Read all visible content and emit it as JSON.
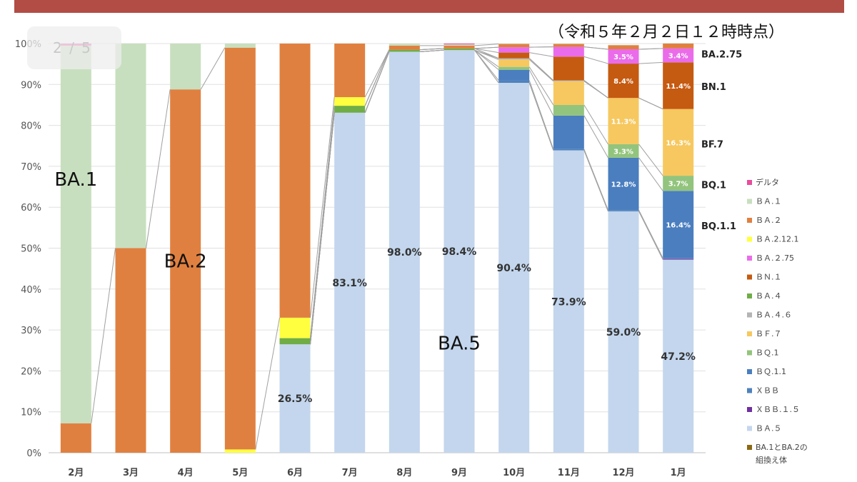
{
  "pagination": {
    "text": "2 / 5"
  },
  "chart_data": {
    "type": "bar",
    "stacked": true,
    "percent": true,
    "title": "",
    "subtitle": "（令和５年２月２日１２時時点）",
    "xlabel": "",
    "ylabel": "",
    "ylim": [
      0,
      100
    ],
    "yticks": [
      "0%",
      "10%",
      "20%",
      "30%",
      "40%",
      "50%",
      "60%",
      "70%",
      "80%",
      "90%",
      "100%"
    ],
    "categories": [
      "2月",
      "3月",
      "4月",
      "5月",
      "6月",
      "7月",
      "8月",
      "9月",
      "10月",
      "11月",
      "12月",
      "1月"
    ],
    "series": [
      {
        "name": "ＢＡ.５",
        "color": "#c3d6ed",
        "values": [
          0,
          0,
          0,
          0,
          26.5,
          83.1,
          98.0,
          98.4,
          90.4,
          73.9,
          59.0,
          47.2
        ]
      },
      {
        "name": "ＸＢＢ.１.５",
        "color": "#7030a0",
        "values": [
          0,
          0,
          0,
          0,
          0,
          0,
          0,
          0,
          0,
          0,
          0,
          0.2
        ]
      },
      {
        "name": "ＸＢＢ",
        "color": "#4f81bd",
        "values": [
          0,
          0,
          0,
          0,
          0,
          0,
          0,
          0,
          0.6,
          0.3,
          0.3,
          0.2
        ]
      },
      {
        "name": "ＢＱ.1.1",
        "color": "#4a7ebf",
        "values": [
          0,
          0,
          0,
          0,
          0,
          0,
          0,
          0,
          2.6,
          8.2,
          12.8,
          16.4
        ]
      },
      {
        "name": "ＢＱ.1",
        "color": "#93c47d",
        "values": [
          0,
          0,
          0,
          0,
          0,
          0,
          0,
          0,
          0.7,
          2.6,
          3.3,
          3.7
        ]
      },
      {
        "name": "ＢＦ.７",
        "color": "#f6c85f",
        "values": [
          0,
          0,
          0,
          0,
          0,
          0,
          0,
          0,
          1.8,
          5.8,
          11.3,
          16.3
        ]
      },
      {
        "name": "ＢＡ.４.６",
        "color": "#b4b4b4",
        "values": [
          0,
          0,
          0,
          0,
          0,
          0,
          0,
          0,
          0.3,
          0.2,
          0,
          0
        ]
      },
      {
        "name": "ＢＡ.４",
        "color": "#70ad47",
        "values": [
          0,
          0,
          0,
          0,
          1.5,
          1.7,
          0.5,
          0.4,
          0,
          0,
          0,
          0
        ]
      },
      {
        "name": "ＢＮ.１",
        "color": "#c55a11",
        "values": [
          0,
          0,
          0,
          0,
          0,
          0,
          0,
          0,
          1.4,
          5.8,
          8.4,
          11.4
        ]
      },
      {
        "name": "ＢＡ.２.75",
        "color": "#ea6cea",
        "values": [
          0,
          0,
          0,
          0,
          0,
          0,
          0,
          0,
          1.3,
          2.4,
          3.5,
          3.4
        ]
      },
      {
        "name": "ＢＡ.2.12.1",
        "color": "#ffff40",
        "values": [
          0,
          0,
          0,
          0.8,
          5.0,
          2.1,
          0,
          0,
          0,
          0,
          0,
          0
        ]
      },
      {
        "name": "ＢＡ.２",
        "color": "#e08040",
        "values": [
          7.2,
          50.0,
          88.8,
          98.2,
          67.0,
          13.1,
          1.0,
          0.7,
          0.8,
          0.7,
          1.0,
          1.2
        ]
      },
      {
        "name": "ＢＡ.１",
        "color": "#c8dfbf",
        "values": [
          92.3,
          50.0,
          11.2,
          1.0,
          0,
          0,
          0.5,
          0.3,
          0.1,
          0.1,
          0.1,
          0.1
        ]
      },
      {
        "name": "デルタ",
        "color": "#e84c9b",
        "values": [
          0.5,
          0,
          0,
          0,
          0,
          0,
          0,
          0.2,
          0,
          0,
          0,
          0
        ]
      },
      {
        "name": "BA.1とBA.2の組換え体",
        "color": "#8b6914",
        "values": [
          0,
          0,
          0,
          0,
          0,
          0,
          0,
          0,
          0,
          0,
          0,
          0
        ]
      }
    ],
    "data_labels": [
      {
        "category": "6月",
        "series": "ＢＡ.５",
        "text": "26.5%"
      },
      {
        "category": "7月",
        "series": "ＢＡ.５",
        "text": "83.1%"
      },
      {
        "category": "8月",
        "series": "ＢＡ.５",
        "text": "98.0%"
      },
      {
        "category": "9月",
        "series": "ＢＡ.５",
        "text": "98.4%"
      },
      {
        "category": "10月",
        "series": "ＢＡ.５",
        "text": "90.4%"
      },
      {
        "category": "11月",
        "series": "ＢＡ.５",
        "text": "73.9%"
      },
      {
        "category": "12月",
        "series": "ＢＡ.５",
        "text": "59.0%"
      },
      {
        "category": "1月",
        "series": "ＢＡ.５",
        "text": "47.2%"
      },
      {
        "category": "12月",
        "series": "ＢＱ.1.1",
        "text": "12.8%"
      },
      {
        "category": "1月",
        "series": "ＢＱ.1.1",
        "text": "16.4%"
      },
      {
        "category": "12月",
        "series": "ＢＱ.1",
        "text": "3.3%"
      },
      {
        "category": "1月",
        "series": "ＢＱ.1",
        "text": "3.7%"
      },
      {
        "category": "12月",
        "series": "ＢＦ.７",
        "text": "11.3%"
      },
      {
        "category": "1月",
        "series": "ＢＦ.７",
        "text": "16.3%"
      },
      {
        "category": "12月",
        "series": "ＢＮ.１",
        "text": "8.4%"
      },
      {
        "category": "1月",
        "series": "ＢＮ.１",
        "text": "11.4%"
      },
      {
        "category": "12月",
        "series": "ＢＡ.２.75",
        "text": "3.5%"
      },
      {
        "category": "1月",
        "series": "ＢＡ.２.75",
        "text": "3.4%"
      }
    ],
    "annotations": [
      {
        "text": "BA.1",
        "category": "2月",
        "value": 67
      },
      {
        "text": "BA.2",
        "category": "4月",
        "value": 47
      },
      {
        "text": "BA.5",
        "category": "9月",
        "value": 27
      }
    ],
    "side_labels": [
      {
        "text": "BA.2.75",
        "value": 97.5
      },
      {
        "text": "BN.1",
        "value": 89.5
      },
      {
        "text": "BF.7",
        "value": 75.5
      },
      {
        "text": "BQ.1",
        "value": 65.5
      },
      {
        "text": "BQ.1.1",
        "value": 55.5
      }
    ],
    "legend": {
      "position": "right",
      "entries": [
        {
          "label": "デルタ",
          "color": "#e84c9b"
        },
        {
          "label": "ＢＡ.１",
          "color": "#c8dfbf"
        },
        {
          "label": "ＢＡ.２",
          "color": "#e08040"
        },
        {
          "label": "ＢＡ.2.12.1",
          "color": "#ffff40"
        },
        {
          "label": "ＢＡ.２.75",
          "color": "#ea6cea"
        },
        {
          "label": "ＢＮ.１",
          "color": "#c55a11"
        },
        {
          "label": "ＢＡ.４",
          "color": "#70ad47"
        },
        {
          "label": "ＢＡ.４.６",
          "color": "#b4b4b4"
        },
        {
          "label": "ＢＦ.７",
          "color": "#f6c85f"
        },
        {
          "label": "ＢＱ.1",
          "color": "#93c47d"
        },
        {
          "label": "ＢＱ.1.1",
          "color": "#4a7ebf"
        },
        {
          "label": "ＸＢＢ",
          "color": "#4f81bd"
        },
        {
          "label": "ＸＢＢ.１.５",
          "color": "#7030a0"
        },
        {
          "label": "ＢＡ.５",
          "color": "#c3d6ed"
        },
        {
          "label": "BA.1とBA.2の組換え体",
          "color": "#8b6914"
        }
      ]
    },
    "grid": true
  }
}
